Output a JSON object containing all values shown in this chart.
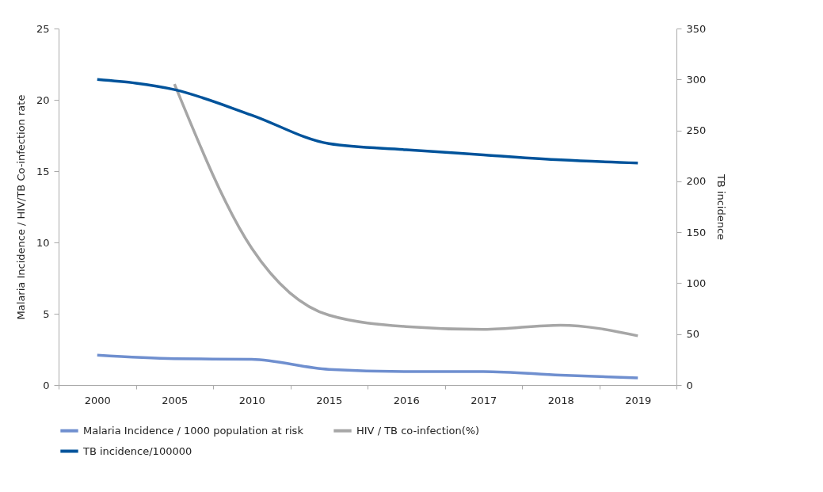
{
  "chart_data": {
    "type": "line",
    "ylabel": "Malaria Incidence / HIV/TB Co-infection  rate",
    "y2label": "TB incidence",
    "categories": [
      "2000",
      "2005",
      "2010",
      "2015",
      "2016",
      "2017",
      "2018",
      "2019"
    ],
    "ylim": [
      0,
      25
    ],
    "yticks": [
      0,
      5,
      10,
      15,
      20,
      25
    ],
    "y2lim": [
      0,
      350
    ],
    "y2ticks": [
      0,
      50,
      100,
      150,
      200,
      250,
      300,
      350
    ],
    "grid": false,
    "legend": "bottom",
    "marker": "none",
    "line_style": "solid",
    "series": [
      {
        "name": "Malaria Incidence / 1000 population at risk",
        "color": "#6f8fcf",
        "values": [
          2.1,
          1.85,
          1.8,
          1.1,
          0.95,
          0.95,
          0.7,
          0.5
        ]
      },
      {
        "name": "HIV / TB co-infection(%)",
        "color": "#a6a6a6",
        "values": [
          null,
          21.1,
          9.6,
          4.9,
          4.1,
          3.9,
          4.2,
          3.45
        ]
      },
      {
        "name": "TB incidence/100000",
        "color": "#00539b",
        "axis": "y2",
        "values": [
          300,
          290,
          265,
          237,
          231,
          226,
          221,
          218
        ]
      }
    ]
  }
}
